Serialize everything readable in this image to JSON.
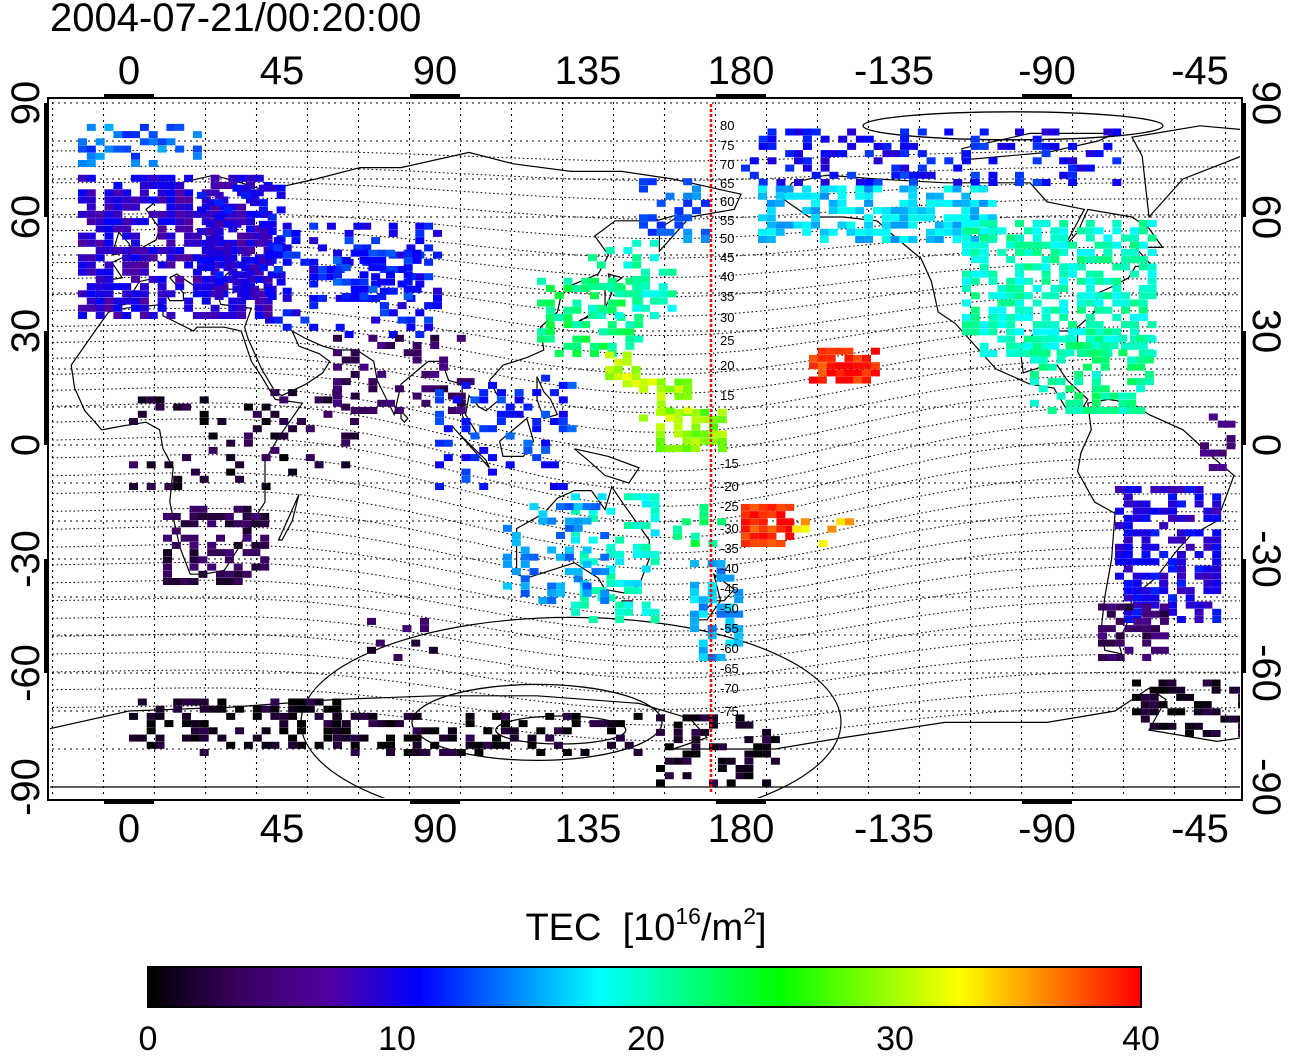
{
  "timestamp": "2004-07-21/00:20:00",
  "map": {
    "top_lon_labels": [
      "0",
      "45",
      "90",
      "135",
      "180",
      "-135",
      "-90",
      "-45"
    ],
    "bottom_lon_labels": [
      "0",
      "45",
      "90",
      "135",
      "180",
      "-135",
      "-90",
      "-45"
    ],
    "lat_labels": [
      "90",
      "60",
      "30",
      "0",
      "-30",
      "-60",
      "-90"
    ],
    "meridian_line_color": "#ff0000",
    "contour_labels_north": [
      "80",
      "75",
      "70",
      "65",
      "60",
      "55",
      "50",
      "45",
      "40",
      "35",
      "30",
      "25",
      "20",
      "15"
    ],
    "contour_labels_south": [
      "-15",
      "-20",
      "-25",
      "-30",
      "-35",
      "-40",
      "-45",
      "-50",
      "-55",
      "-60",
      "-65",
      "-70",
      "-75"
    ]
  },
  "colorbar": {
    "title_main": "TEC",
    "title_open": "[10",
    "title_exp1": "16",
    "title_mid": "/m",
    "title_exp2": "2",
    "title_close": "]",
    "ticks": [
      "0",
      "10",
      "20",
      "30",
      "40"
    ],
    "range": [
      0,
      40
    ],
    "colors": [
      "#000000",
      "#3a0060",
      "#5000a0",
      "#0000ff",
      "#0080ff",
      "#00ffff",
      "#00ff80",
      "#00ff00",
      "#80ff00",
      "#ffff00",
      "#ff8000",
      "#ff0000"
    ]
  }
}
